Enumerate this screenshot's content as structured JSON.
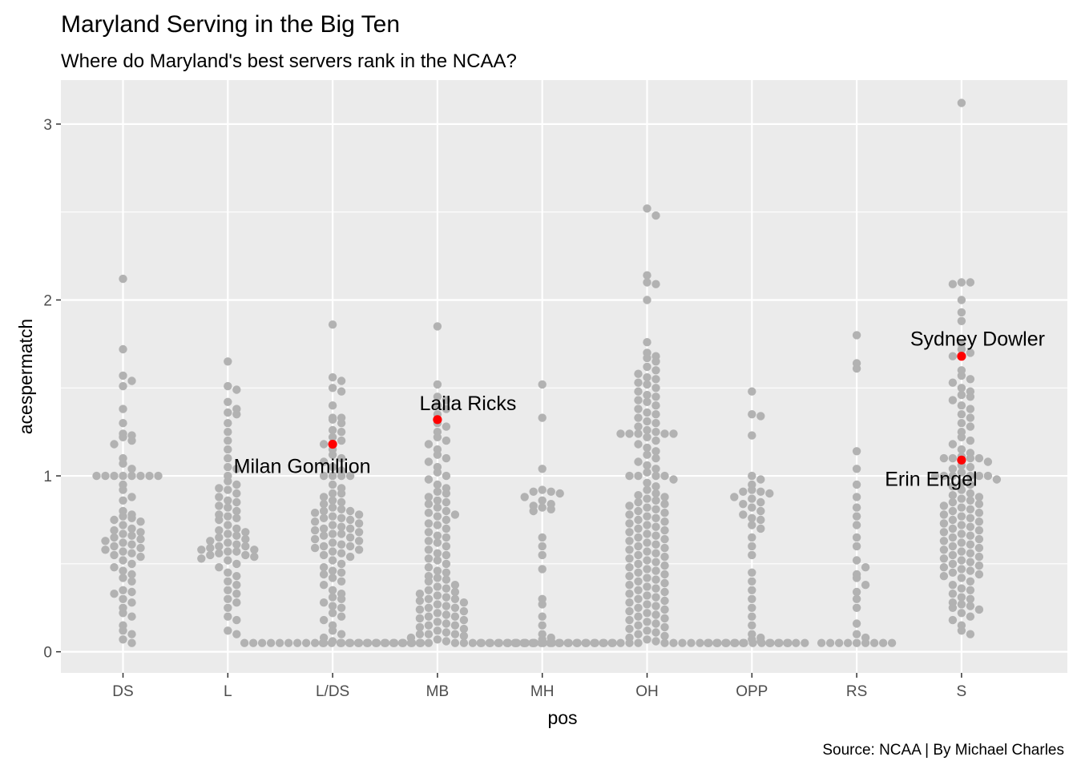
{
  "chart_data": {
    "type": "scatter",
    "title": "Maryland Serving in the Big Ten",
    "subtitle": "Where do Maryland's best servers rank in the NCAA?",
    "xlabel": "pos",
    "ylabel": "acespermatch",
    "caption": "Source: NCAA | By Michael Charles",
    "categories": [
      "DS",
      "L",
      "L/DS",
      "MB",
      "MH",
      "OH",
      "OPP",
      "RS",
      "S"
    ],
    "ylim": [
      -0.12,
      3.25
    ],
    "yticks": [
      0,
      1,
      2,
      3
    ],
    "grid": true,
    "colors": {
      "panel": "#ebebeb",
      "gridline": "#ffffff",
      "point": "#b2b2b2",
      "highlight": "#ff0000"
    },
    "highlight": [
      {
        "name": "Milan Gomillion",
        "category": "L/DS",
        "value": 1.18
      },
      {
        "name": "Laila Ricks",
        "category": "MB",
        "value": 1.32
      },
      {
        "name": "Sydney Dowler",
        "category": "S",
        "value": 1.68
      },
      {
        "name": "Erin Engel",
        "category": "S",
        "value": 1.09
      }
    ],
    "series": [
      {
        "category": "DS",
        "values": [
          2.12,
          1.72,
          1.57,
          1.54,
          1.51,
          1.38,
          1.3,
          1.24,
          1.23,
          1.22,
          1.2,
          1.18,
          1.1,
          1.07,
          1.04,
          1.0,
          1.0,
          1.0,
          1.0,
          1.0,
          1.0,
          1.0,
          1.0,
          0.95,
          0.92,
          0.88,
          0.86,
          0.8,
          0.78,
          0.77,
          0.76,
          0.75,
          0.74,
          0.72,
          0.7,
          0.69,
          0.68,
          0.67,
          0.66,
          0.65,
          0.64,
          0.63,
          0.62,
          0.61,
          0.6,
          0.59,
          0.58,
          0.57,
          0.56,
          0.55,
          0.54,
          0.52,
          0.5,
          0.48,
          0.46,
          0.44,
          0.42,
          0.4,
          0.35,
          0.34,
          0.33,
          0.3,
          0.28,
          0.25,
          0.22,
          0.2,
          0.15,
          0.12,
          0.1,
          0.07,
          0.05
        ]
      },
      {
        "category": "L",
        "values": [
          1.65,
          1.51,
          1.49,
          1.42,
          1.38,
          1.36,
          1.35,
          1.3,
          1.25,
          1.2,
          1.15,
          1.1,
          1.05,
          1.04,
          1.0,
          0.97,
          0.95,
          0.93,
          0.92,
          0.9,
          0.88,
          0.86,
          0.85,
          0.83,
          0.82,
          0.8,
          0.78,
          0.77,
          0.76,
          0.75,
          0.72,
          0.7,
          0.69,
          0.68,
          0.67,
          0.66,
          0.65,
          0.64,
          0.63,
          0.62,
          0.61,
          0.6,
          0.6,
          0.59,
          0.58,
          0.58,
          0.57,
          0.57,
          0.56,
          0.55,
          0.55,
          0.54,
          0.53,
          0.52,
          0.5,
          0.48,
          0.45,
          0.43,
          0.4,
          0.38,
          0.35,
          0.33,
          0.3,
          0.28,
          0.25,
          0.2,
          0.18,
          0.12,
          0.1
        ]
      },
      {
        "category": "L/DS",
        "values": [
          1.86,
          1.56,
          1.54,
          1.5,
          1.48,
          1.4,
          1.33,
          1.33,
          1.32,
          1.3,
          1.26,
          1.25,
          1.22,
          1.2,
          1.18,
          1.15,
          1.12,
          1.1,
          1.08,
          1.05,
          1.03,
          1.0,
          1.0,
          1.0,
          1.0,
          0.95,
          0.93,
          0.9,
          0.9,
          0.88,
          0.86,
          0.85,
          0.84,
          0.82,
          0.81,
          0.8,
          0.8,
          0.79,
          0.78,
          0.77,
          0.76,
          0.76,
          0.75,
          0.74,
          0.73,
          0.72,
          0.71,
          0.7,
          0.7,
          0.69,
          0.68,
          0.67,
          0.67,
          0.66,
          0.65,
          0.64,
          0.63,
          0.62,
          0.61,
          0.6,
          0.6,
          0.59,
          0.58,
          0.57,
          0.56,
          0.55,
          0.54,
          0.52,
          0.5,
          0.48,
          0.46,
          0.45,
          0.44,
          0.42,
          0.4,
          0.38,
          0.35,
          0.33,
          0.31,
          0.3,
          0.28,
          0.26,
          0.25,
          0.22,
          0.2,
          0.18,
          0.15,
          0.12,
          0.1,
          0.08,
          0.06,
          0.05,
          0.05,
          0.05,
          0.05,
          0.05,
          0.05,
          0.05,
          0.05,
          0.05,
          0.05,
          0.05,
          0.05,
          0.05,
          0.05,
          0.05,
          0.05,
          0.05,
          0.05,
          0.05,
          0.05
        ]
      },
      {
        "category": "MB",
        "values": [
          1.85,
          1.52,
          1.45,
          1.43,
          1.4,
          1.38,
          1.35,
          1.3,
          1.28,
          1.25,
          1.22,
          1.2,
          1.18,
          1.15,
          1.12,
          1.1,
          1.08,
          1.05,
          1.02,
          1.0,
          0.98,
          0.95,
          0.93,
          0.91,
          0.9,
          0.88,
          0.86,
          0.85,
          0.84,
          0.82,
          0.8,
          0.79,
          0.78,
          0.77,
          0.75,
          0.73,
          0.72,
          0.7,
          0.68,
          0.66,
          0.65,
          0.63,
          0.62,
          0.6,
          0.58,
          0.56,
          0.55,
          0.53,
          0.52,
          0.5,
          0.48,
          0.46,
          0.45,
          0.43,
          0.42,
          0.41,
          0.4,
          0.38,
          0.37,
          0.36,
          0.35,
          0.34,
          0.33,
          0.32,
          0.31,
          0.3,
          0.3,
          0.29,
          0.28,
          0.27,
          0.26,
          0.25,
          0.25,
          0.24,
          0.23,
          0.22,
          0.21,
          0.2,
          0.2,
          0.19,
          0.18,
          0.17,
          0.16,
          0.15,
          0.15,
          0.14,
          0.13,
          0.12,
          0.11,
          0.1,
          0.1,
          0.1,
          0.09,
          0.08,
          0.07,
          0.06,
          0.05,
          0.05,
          0.05,
          0.05,
          0.05,
          0.05,
          0.05,
          0.05,
          0.05,
          0.05,
          0.05,
          0.05,
          0.05,
          0.05,
          0.05,
          0.05,
          0.05,
          0.05,
          0.05,
          0.05,
          0.05,
          0.05,
          0.05,
          0.05,
          0.05
        ]
      },
      {
        "category": "MH",
        "values": [
          1.52,
          1.33,
          1.04,
          0.92,
          0.91,
          0.91,
          0.9,
          0.88,
          0.86,
          0.84,
          0.83,
          0.82,
          0.81,
          0.8,
          0.65,
          0.6,
          0.55,
          0.47,
          0.3,
          0.27,
          0.2,
          0.15,
          0.1,
          0.08,
          0.07,
          0.06,
          0.05,
          0.05,
          0.05,
          0.05,
          0.05,
          0.05,
          0.05,
          0.05,
          0.05,
          0.05,
          0.05,
          0.05,
          0.05,
          0.05
        ]
      },
      {
        "category": "OH",
        "values": [
          2.52,
          2.48,
          2.14,
          2.1,
          2.09,
          2.0,
          1.76,
          1.7,
          1.68,
          1.67,
          1.65,
          1.62,
          1.6,
          1.58,
          1.56,
          1.55,
          1.53,
          1.52,
          1.5,
          1.48,
          1.46,
          1.45,
          1.43,
          1.42,
          1.4,
          1.38,
          1.36,
          1.35,
          1.33,
          1.31,
          1.3,
          1.28,
          1.26,
          1.25,
          1.24,
          1.24,
          1.24,
          1.24,
          1.24,
          1.22,
          1.2,
          1.18,
          1.16,
          1.14,
          1.12,
          1.1,
          1.08,
          1.06,
          1.04,
          1.02,
          1.0,
          1.0,
          1.0,
          1.0,
          0.98,
          0.96,
          0.94,
          0.92,
          0.9,
          0.89,
          0.88,
          0.87,
          0.86,
          0.85,
          0.84,
          0.83,
          0.82,
          0.81,
          0.8,
          0.79,
          0.78,
          0.77,
          0.76,
          0.75,
          0.74,
          0.73,
          0.72,
          0.71,
          0.7,
          0.69,
          0.68,
          0.67,
          0.66,
          0.65,
          0.64,
          0.63,
          0.62,
          0.61,
          0.6,
          0.59,
          0.58,
          0.57,
          0.56,
          0.55,
          0.54,
          0.53,
          0.52,
          0.51,
          0.5,
          0.49,
          0.48,
          0.47,
          0.46,
          0.45,
          0.44,
          0.43,
          0.42,
          0.41,
          0.4,
          0.39,
          0.38,
          0.37,
          0.36,
          0.35,
          0.34,
          0.33,
          0.32,
          0.31,
          0.3,
          0.29,
          0.28,
          0.27,
          0.26,
          0.25,
          0.24,
          0.23,
          0.22,
          0.21,
          0.2,
          0.19,
          0.18,
          0.17,
          0.16,
          0.15,
          0.14,
          0.13,
          0.12,
          0.11,
          0.1,
          0.09,
          0.08,
          0.07,
          0.06,
          0.05,
          0.05,
          0.05,
          0.05,
          0.05,
          0.05,
          0.05,
          0.05,
          0.05,
          0.05,
          0.05,
          0.05,
          0.05,
          0.05,
          0.05,
          0.05,
          0.05,
          0.05,
          0.05,
          0.05,
          0.05,
          0.05,
          0.05,
          0.05,
          0.05,
          0.05,
          0.05,
          0.05,
          0.05,
          0.05
        ]
      },
      {
        "category": "OPP",
        "values": [
          1.48,
          1.35,
          1.34,
          1.23,
          1.0,
          0.98,
          0.95,
          0.92,
          0.91,
          0.91,
          0.9,
          0.88,
          0.87,
          0.85,
          0.84,
          0.82,
          0.8,
          0.78,
          0.76,
          0.75,
          0.72,
          0.7,
          0.65,
          0.6,
          0.55,
          0.45,
          0.4,
          0.35,
          0.3,
          0.25,
          0.2,
          0.15,
          0.1,
          0.08,
          0.07,
          0.06,
          0.05,
          0.05,
          0.05,
          0.05,
          0.05,
          0.05,
          0.05,
          0.05,
          0.05,
          0.05
        ]
      },
      {
        "category": "RS",
        "values": [
          1.8,
          1.64,
          1.61,
          1.14,
          1.04,
          0.95,
          0.88,
          0.82,
          0.77,
          0.72,
          0.65,
          0.6,
          0.52,
          0.48,
          0.44,
          0.42,
          0.38,
          0.34,
          0.3,
          0.25,
          0.16,
          0.1,
          0.08,
          0.05,
          0.05,
          0.05,
          0.05,
          0.05,
          0.05,
          0.05,
          0.05,
          0.05
        ]
      },
      {
        "category": "S",
        "values": [
          3.12,
          2.1,
          2.1,
          2.09,
          2.0,
          1.93,
          1.88,
          1.75,
          1.72,
          1.7,
          1.68,
          1.6,
          1.57,
          1.55,
          1.53,
          1.5,
          1.48,
          1.46,
          1.45,
          1.43,
          1.4,
          1.38,
          1.35,
          1.33,
          1.3,
          1.28,
          1.25,
          1.22,
          1.2,
          1.18,
          1.15,
          1.13,
          1.11,
          1.1,
          1.1,
          1.1,
          1.1,
          1.08,
          1.06,
          1.05,
          1.04,
          1.02,
          1.0,
          1.0,
          1.0,
          1.0,
          1.0,
          1.0,
          0.98,
          0.96,
          0.95,
          0.94,
          0.92,
          0.9,
          0.89,
          0.88,
          0.87,
          0.86,
          0.85,
          0.84,
          0.83,
          0.82,
          0.81,
          0.8,
          0.79,
          0.78,
          0.77,
          0.76,
          0.75,
          0.74,
          0.73,
          0.72,
          0.71,
          0.7,
          0.69,
          0.68,
          0.67,
          0.66,
          0.65,
          0.64,
          0.63,
          0.62,
          0.61,
          0.6,
          0.59,
          0.58,
          0.57,
          0.56,
          0.55,
          0.54,
          0.53,
          0.52,
          0.51,
          0.5,
          0.49,
          0.48,
          0.47,
          0.46,
          0.45,
          0.44,
          0.43,
          0.42,
          0.4,
          0.38,
          0.36,
          0.35,
          0.33,
          0.31,
          0.3,
          0.28,
          0.27,
          0.26,
          0.25,
          0.24,
          0.22,
          0.2,
          0.18,
          0.15,
          0.12,
          0.1
        ]
      }
    ]
  }
}
